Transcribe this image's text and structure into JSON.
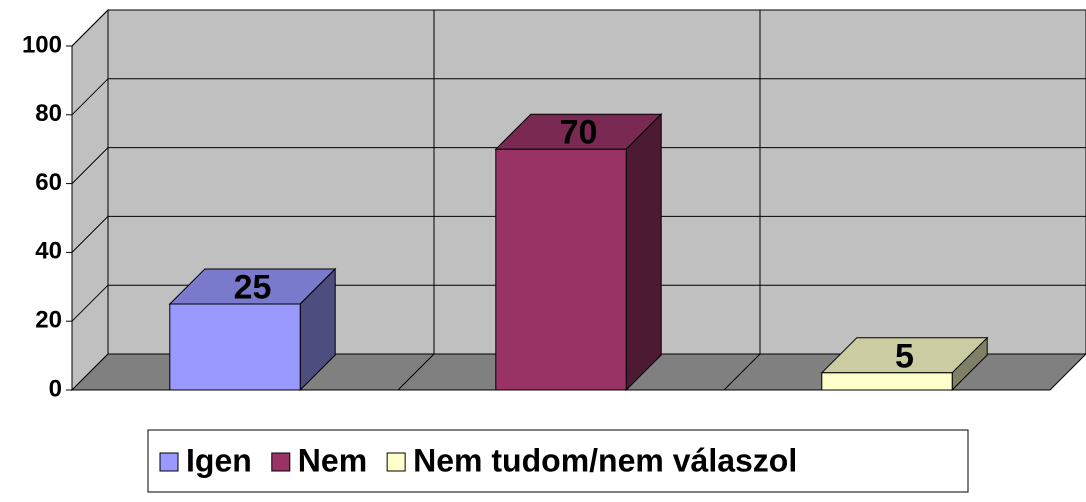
{
  "chart_data": {
    "type": "bar3d",
    "categories": [
      "Igen",
      "Nem",
      "Nem tudom/nem válaszol"
    ],
    "series": [
      {
        "name": "Igen",
        "color": "#9999ff",
        "values": [
          25,
          null,
          null
        ]
      },
      {
        "name": "Nem",
        "color": "#993366",
        "values": [
          null,
          70,
          null
        ]
      },
      {
        "name": "Nem tudom/nem válaszol",
        "color": "#ffffcc",
        "values": [
          null,
          null,
          5
        ]
      }
    ],
    "ylim": [
      0,
      100
    ],
    "yticks": [
      0,
      20,
      40,
      60,
      80,
      100
    ],
    "grid": true,
    "legend": "bottom"
  }
}
